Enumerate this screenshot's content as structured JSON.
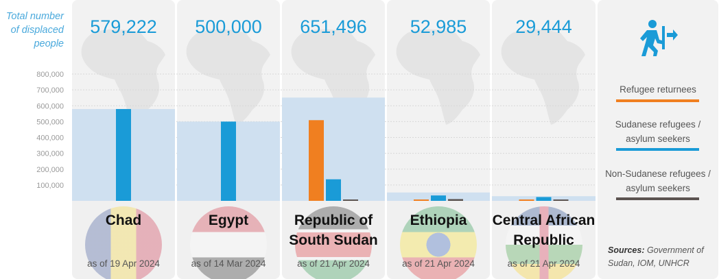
{
  "y_axis_title": "Total number of displaced people",
  "legend": {
    "returnees": "Refugee returnees",
    "sudanese": "Sudanese refugees / asylum seekers",
    "non_sudanese": "Non-Sudanese refugees / asylum seekers"
  },
  "colors": {
    "returnees": "#f07f20",
    "sudanese": "#1a9bd7",
    "non_sudanese": "#5b5350",
    "total_area": "#cfe0f0",
    "total_text": "#1a9bd7"
  },
  "sources_label": "Sources:",
  "sources_text": "Government of Sudan, IOM, UNHCR",
  "icon": "person-exit-icon",
  "chart_data": {
    "type": "bar",
    "ylabel": "Total number of displaced people",
    "ylim": [
      0,
      800000
    ],
    "yticks": [
      "100,000",
      "200,000",
      "300,000",
      "400,000",
      "500,000",
      "600,000",
      "700,000",
      "800,000"
    ],
    "ytick_values": [
      100000,
      200000,
      300000,
      400000,
      500000,
      600000,
      700000,
      800000
    ],
    "grid": true,
    "legend_position": "right",
    "categories": [
      "Chad",
      "Egypt",
      "Republic of South Sudan",
      "Ethiopia",
      "Central African Republic"
    ],
    "totals": [
      579222,
      500000,
      651496,
      52985,
      29444
    ],
    "totals_labels": [
      "579,222",
      "500,000",
      "651,496",
      "52,985",
      "29,444"
    ],
    "as_of": [
      "as of 19 Apr 2024",
      "as of 14 Mar 2024",
      "as of 21 Apr 2024",
      "as of 21 Apr 2024",
      "as of 21 Apr 2024"
    ],
    "series": [
      {
        "name": "Refugee returnees",
        "values": [
          0,
          0,
          509000,
          8000,
          5000
        ]
      },
      {
        "name": "Sudanese refugees / asylum seekers",
        "values": [
          579222,
          500000,
          136000,
          34000,
          24000
        ]
      },
      {
        "name": "Non-Sudanese refugees / asylum seekers",
        "values": [
          0,
          0,
          6500,
          11000,
          500
        ]
      }
    ]
  }
}
